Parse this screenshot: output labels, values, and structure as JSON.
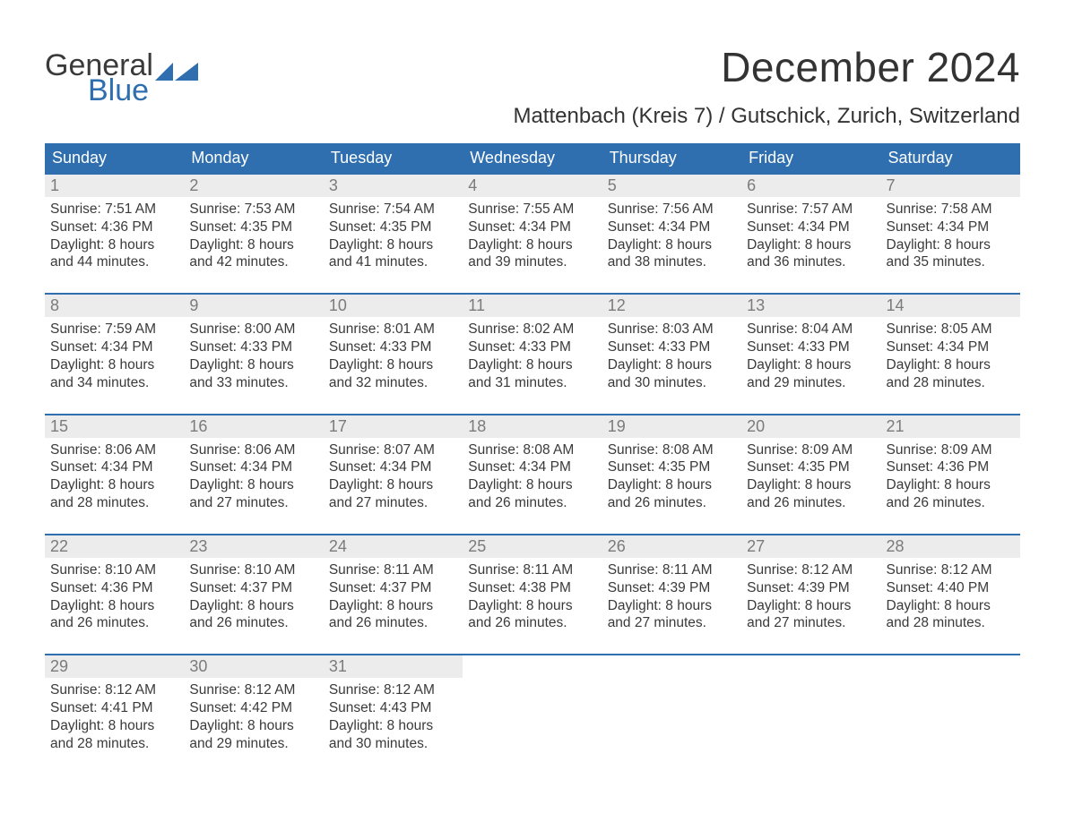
{
  "colors": {
    "header_bg": "#2f6fb0",
    "header_text": "#ffffff",
    "daynum_bg": "#ececec",
    "daynum_text": "#7b7b7b",
    "body_text": "#3a3a3a",
    "week_rule": "#2f6fb0",
    "logo_blue": "#2f6fb0",
    "page_bg": "#ffffff"
  },
  "logo": {
    "line1": "General",
    "line2": "Blue"
  },
  "title": "December 2024",
  "location": "Mattenbach (Kreis 7) / Gutschick, Zurich, Switzerland",
  "day_headers": [
    "Sunday",
    "Monday",
    "Tuesday",
    "Wednesday",
    "Thursday",
    "Friday",
    "Saturday"
  ],
  "labels": {
    "sunrise_prefix": "Sunrise: ",
    "sunset_prefix": "Sunset: ",
    "daylight_prefix": "Daylight: ",
    "daylight_hours_word": " hours",
    "daylight_and_word": "and ",
    "daylight_minutes_word": " minutes."
  },
  "weeks": [
    [
      {
        "day": "1",
        "sunrise": "7:51 AM",
        "sunset": "4:36 PM",
        "d_h": "8",
        "d_m": "44"
      },
      {
        "day": "2",
        "sunrise": "7:53 AM",
        "sunset": "4:35 PM",
        "d_h": "8",
        "d_m": "42"
      },
      {
        "day": "3",
        "sunrise": "7:54 AM",
        "sunset": "4:35 PM",
        "d_h": "8",
        "d_m": "41"
      },
      {
        "day": "4",
        "sunrise": "7:55 AM",
        "sunset": "4:34 PM",
        "d_h": "8",
        "d_m": "39"
      },
      {
        "day": "5",
        "sunrise": "7:56 AM",
        "sunset": "4:34 PM",
        "d_h": "8",
        "d_m": "38"
      },
      {
        "day": "6",
        "sunrise": "7:57 AM",
        "sunset": "4:34 PM",
        "d_h": "8",
        "d_m": "36"
      },
      {
        "day": "7",
        "sunrise": "7:58 AM",
        "sunset": "4:34 PM",
        "d_h": "8",
        "d_m": "35"
      }
    ],
    [
      {
        "day": "8",
        "sunrise": "7:59 AM",
        "sunset": "4:34 PM",
        "d_h": "8",
        "d_m": "34"
      },
      {
        "day": "9",
        "sunrise": "8:00 AM",
        "sunset": "4:33 PM",
        "d_h": "8",
        "d_m": "33"
      },
      {
        "day": "10",
        "sunrise": "8:01 AM",
        "sunset": "4:33 PM",
        "d_h": "8",
        "d_m": "32"
      },
      {
        "day": "11",
        "sunrise": "8:02 AM",
        "sunset": "4:33 PM",
        "d_h": "8",
        "d_m": "31"
      },
      {
        "day": "12",
        "sunrise": "8:03 AM",
        "sunset": "4:33 PM",
        "d_h": "8",
        "d_m": "30"
      },
      {
        "day": "13",
        "sunrise": "8:04 AM",
        "sunset": "4:33 PM",
        "d_h": "8",
        "d_m": "29"
      },
      {
        "day": "14",
        "sunrise": "8:05 AM",
        "sunset": "4:34 PM",
        "d_h": "8",
        "d_m": "28"
      }
    ],
    [
      {
        "day": "15",
        "sunrise": "8:06 AM",
        "sunset": "4:34 PM",
        "d_h": "8",
        "d_m": "28"
      },
      {
        "day": "16",
        "sunrise": "8:06 AM",
        "sunset": "4:34 PM",
        "d_h": "8",
        "d_m": "27"
      },
      {
        "day": "17",
        "sunrise": "8:07 AM",
        "sunset": "4:34 PM",
        "d_h": "8",
        "d_m": "27"
      },
      {
        "day": "18",
        "sunrise": "8:08 AM",
        "sunset": "4:34 PM",
        "d_h": "8",
        "d_m": "26"
      },
      {
        "day": "19",
        "sunrise": "8:08 AM",
        "sunset": "4:35 PM",
        "d_h": "8",
        "d_m": "26"
      },
      {
        "day": "20",
        "sunrise": "8:09 AM",
        "sunset": "4:35 PM",
        "d_h": "8",
        "d_m": "26"
      },
      {
        "day": "21",
        "sunrise": "8:09 AM",
        "sunset": "4:36 PM",
        "d_h": "8",
        "d_m": "26"
      }
    ],
    [
      {
        "day": "22",
        "sunrise": "8:10 AM",
        "sunset": "4:36 PM",
        "d_h": "8",
        "d_m": "26"
      },
      {
        "day": "23",
        "sunrise": "8:10 AM",
        "sunset": "4:37 PM",
        "d_h": "8",
        "d_m": "26"
      },
      {
        "day": "24",
        "sunrise": "8:11 AM",
        "sunset": "4:37 PM",
        "d_h": "8",
        "d_m": "26"
      },
      {
        "day": "25",
        "sunrise": "8:11 AM",
        "sunset": "4:38 PM",
        "d_h": "8",
        "d_m": "26"
      },
      {
        "day": "26",
        "sunrise": "8:11 AM",
        "sunset": "4:39 PM",
        "d_h": "8",
        "d_m": "27"
      },
      {
        "day": "27",
        "sunrise": "8:12 AM",
        "sunset": "4:39 PM",
        "d_h": "8",
        "d_m": "27"
      },
      {
        "day": "28",
        "sunrise": "8:12 AM",
        "sunset": "4:40 PM",
        "d_h": "8",
        "d_m": "28"
      }
    ],
    [
      {
        "day": "29",
        "sunrise": "8:12 AM",
        "sunset": "4:41 PM",
        "d_h": "8",
        "d_m": "28"
      },
      {
        "day": "30",
        "sunrise": "8:12 AM",
        "sunset": "4:42 PM",
        "d_h": "8",
        "d_m": "29"
      },
      {
        "day": "31",
        "sunrise": "8:12 AM",
        "sunset": "4:43 PM",
        "d_h": "8",
        "d_m": "30"
      },
      {
        "empty": true
      },
      {
        "empty": true
      },
      {
        "empty": true
      },
      {
        "empty": true
      }
    ]
  ]
}
